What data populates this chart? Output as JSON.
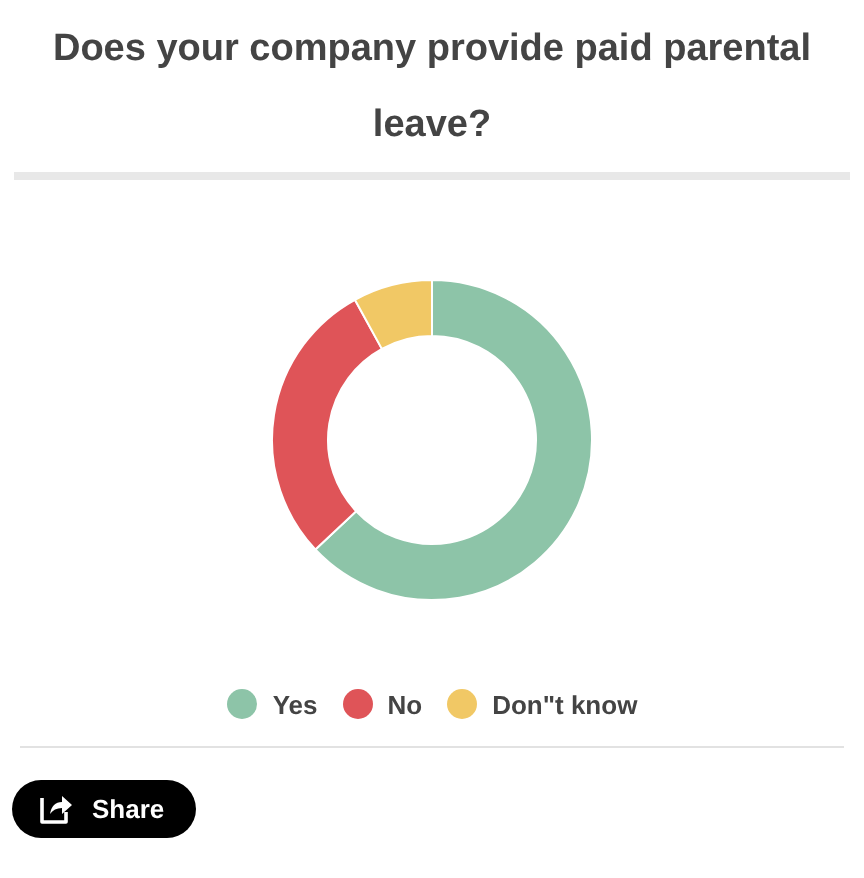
{
  "chart_data": {
    "type": "donut",
    "title": "Does your company provide paid parental leave?",
    "categories": [
      "Yes",
      "No",
      "Don\"t know"
    ],
    "values": [
      63,
      29,
      8
    ],
    "colors": [
      "#8dc4a8",
      "#df5458",
      "#f1c865"
    ],
    "legend": "bottom",
    "annotations": [
      "Share"
    ]
  }
}
